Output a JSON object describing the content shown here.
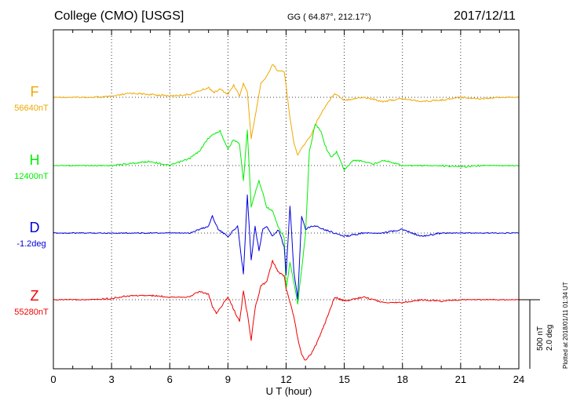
{
  "header": {
    "station": "College (CMO)  [USGS]",
    "coords": "GG ( 64.87°, 212.17°)",
    "date": "2017/12/11"
  },
  "footer_note": "Plotted at 2018/01/11 01:34 UT",
  "scale": {
    "nt": "500 nT",
    "deg": "2.0 deg"
  },
  "chart_data": {
    "type": "line",
    "title": "College (CMO)  [USGS]",
    "xlabel": "U T (hour)",
    "xlim": [
      0,
      24
    ],
    "xticks": [
      0,
      3,
      6,
      9,
      12,
      15,
      18,
      21,
      24
    ],
    "xtick_labels": [
      "0",
      "3",
      "6",
      "9",
      "12",
      "15",
      "18",
      "21",
      "24"
    ],
    "grid": true,
    "series": [
      {
        "name": "F",
        "baseline": "56640nT",
        "color": "#f0a800",
        "x": [
          0,
          2,
          3,
          4,
          5,
          6,
          7,
          7.5,
          8,
          8.3,
          8.6,
          9,
          9.3,
          9.6,
          9.8,
          10,
          10.2,
          10.4,
          10.7,
          11,
          11.3,
          11.6,
          11.9,
          12,
          12.2,
          12.4,
          12.6,
          12.8,
          13,
          13.3,
          13.6,
          14,
          14.5,
          15,
          16,
          17,
          18,
          19,
          20,
          21,
          22,
          23,
          24
        ],
        "y": [
          0,
          0,
          5,
          30,
          20,
          10,
          20,
          45,
          70,
          35,
          60,
          20,
          90,
          10,
          100,
          40,
          -300,
          -140,
          100,
          150,
          240,
          190,
          190,
          80,
          -150,
          -330,
          -420,
          -370,
          -330,
          -270,
          -170,
          -70,
          30,
          -20,
          0,
          -30,
          -10,
          -30,
          -20,
          0,
          -10,
          0,
          0
        ]
      },
      {
        "name": "H",
        "baseline": "12400nT",
        "color": "#00ee00",
        "x": [
          0,
          3,
          5,
          6,
          7,
          7.5,
          8,
          8.3,
          8.6,
          9,
          9.3,
          9.6,
          9.8,
          10,
          10.2,
          10.4,
          10.6,
          10.8,
          11,
          11.3,
          11.6,
          11.9,
          12,
          12.2,
          12.4,
          12.6,
          12.8,
          13,
          13.2,
          13.5,
          13.8,
          14,
          14.3,
          14.6,
          15,
          15.5,
          16,
          16.5,
          17,
          18,
          19,
          20,
          21,
          22,
          23,
          24
        ],
        "y": [
          0,
          0,
          30,
          0,
          50,
          100,
          200,
          230,
          250,
          120,
          190,
          150,
          -110,
          260,
          -300,
          -200,
          -110,
          -200,
          -300,
          -330,
          -450,
          -520,
          -900,
          -700,
          -850,
          -1000,
          -750,
          -500,
          100,
          300,
          250,
          150,
          60,
          100,
          -30,
          40,
          30,
          10,
          40,
          0,
          0,
          0,
          -10,
          0,
          0,
          0
        ]
      },
      {
        "name": "D",
        "baseline": "-1.2deg",
        "color": "#0000dd",
        "x": [
          0,
          3,
          6,
          7,
          8,
          8.2,
          8.5,
          9,
          9.5,
          9.8,
          10,
          10.2,
          10.4,
          10.6,
          10.8,
          11,
          11.3,
          11.6,
          11.9,
          12,
          12.2,
          12.4,
          12.6,
          12.8,
          13,
          13.3,
          13.6,
          14,
          15,
          16,
          17,
          18,
          19,
          20,
          21,
          22,
          23,
          24
        ],
        "y": [
          0,
          0,
          0,
          0,
          0.2,
          0.5,
          0.1,
          -0.1,
          0.2,
          -1.2,
          1.1,
          -0.8,
          0.2,
          -0.5,
          0.1,
          0.2,
          -0.1,
          0.1,
          -0.4,
          -1.2,
          0.8,
          -1.1,
          -1.9,
          0.5,
          0.1,
          0.2,
          0.2,
          0.1,
          -0.1,
          0,
          0,
          0.1,
          -0.1,
          0,
          0,
          0,
          0,
          0
        ]
      },
      {
        "name": "Z",
        "baseline": "55280nT",
        "color": "#ee0000",
        "x": [
          0,
          2,
          3,
          4,
          5,
          6,
          7,
          7.5,
          8,
          8.2,
          8.4,
          8.7,
          9,
          9.3,
          9.6,
          9.8,
          10,
          10.2,
          10.4,
          10.7,
          11,
          11.3,
          11.6,
          11.9,
          12,
          12.2,
          12.4,
          12.6,
          12.8,
          13,
          13.3,
          13.6,
          14,
          14.5,
          15,
          16,
          17,
          18,
          19,
          20,
          21,
          22,
          23,
          24
        ],
        "y": [
          0,
          0,
          10,
          30,
          30,
          20,
          20,
          60,
          40,
          -50,
          -100,
          -40,
          20,
          -70,
          -160,
          60,
          -100,
          -290,
          -60,
          100,
          130,
          280,
          200,
          170,
          80,
          -20,
          -120,
          -280,
          -400,
          -440,
          -390,
          -310,
          -170,
          20,
          -10,
          20,
          -20,
          -20,
          0,
          -10,
          0,
          0,
          0,
          0
        ]
      }
    ]
  }
}
